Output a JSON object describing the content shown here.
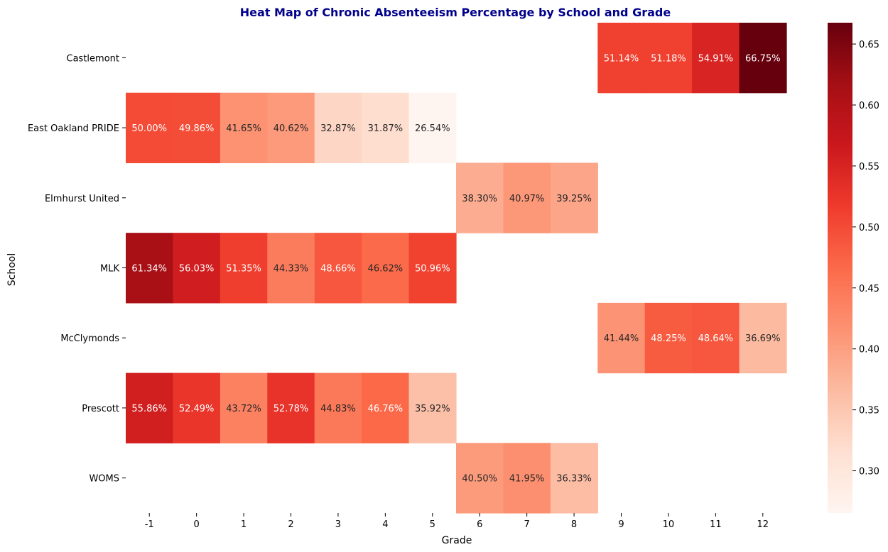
{
  "chart_data": {
    "type": "heatmap",
    "title": "Heat Map of Chronic Absenteeism Percentage by School and Grade",
    "xlabel": "Grade",
    "ylabel": "School",
    "x_categories": [
      "-1",
      "0",
      "1",
      "2",
      "3",
      "4",
      "5",
      "6",
      "7",
      "8",
      "9",
      "10",
      "11",
      "12"
    ],
    "y_categories": [
      "Castlemont",
      "East Oakland PRIDE",
      "Elmhurst United",
      "MLK",
      "McClymonds",
      "Prescott",
      "WOMS"
    ],
    "values": [
      [
        null,
        null,
        null,
        null,
        null,
        null,
        null,
        null,
        null,
        null,
        0.5114,
        0.5118,
        0.5491,
        0.6675
      ],
      [
        0.5,
        0.4986,
        0.4165,
        0.4062,
        0.3287,
        0.3187,
        0.2654,
        null,
        null,
        null,
        null,
        null,
        null,
        null
      ],
      [
        null,
        null,
        null,
        null,
        null,
        null,
        null,
        0.383,
        0.4097,
        0.3925,
        null,
        null,
        null,
        null
      ],
      [
        0.6134,
        0.5603,
        0.5135,
        0.4433,
        0.4866,
        0.4662,
        0.5096,
        null,
        null,
        null,
        null,
        null,
        null,
        null
      ],
      [
        null,
        null,
        null,
        null,
        null,
        null,
        null,
        null,
        null,
        null,
        0.4144,
        0.4825,
        0.4864,
        0.3669
      ],
      [
        0.5586,
        0.5249,
        0.4372,
        0.5278,
        0.4483,
        0.4676,
        0.3592,
        null,
        null,
        null,
        null,
        null,
        null,
        null
      ],
      [
        null,
        null,
        null,
        null,
        null,
        null,
        null,
        0.405,
        0.4195,
        0.3633,
        null,
        null,
        null,
        null
      ]
    ],
    "labels": [
      [
        "",
        "",
        "",
        "",
        "",
        "",
        "",
        "",
        "",
        "",
        "51.14%",
        "51.18%",
        "54.91%",
        "66.75%"
      ],
      [
        "50.00%",
        "49.86%",
        "41.65%",
        "40.62%",
        "32.87%",
        "31.87%",
        "26.54%",
        "",
        "",
        "",
        "",
        "",
        "",
        ""
      ],
      [
        "",
        "",
        "",
        "",
        "",
        "",
        "",
        "38.30%",
        "40.97%",
        "39.25%",
        "",
        "",
        "",
        ""
      ],
      [
        "61.34%",
        "56.03%",
        "51.35%",
        "44.33%",
        "48.66%",
        "46.62%",
        "50.96%",
        "",
        "",
        "",
        "",
        "",
        "",
        ""
      ],
      [
        "",
        "",
        "",
        "",
        "",
        "",
        "",
        "",
        "",
        "",
        "41.44%",
        "48.25%",
        "48.64%",
        "36.69%"
      ],
      [
        "55.86%",
        "52.49%",
        "43.72%",
        "52.78%",
        "44.83%",
        "46.76%",
        "35.92%",
        "",
        "",
        "",
        "",
        "",
        "",
        ""
      ],
      [
        "",
        "",
        "",
        "",
        "",
        "",
        "",
        "40.50%",
        "41.95%",
        "36.33%",
        "",
        "",
        "",
        ""
      ]
    ],
    "colorbar": {
      "min": 0.2654,
      "max": 0.6675,
      "ticks": [
        0.3,
        0.35,
        0.4,
        0.45,
        0.5,
        0.55,
        0.6,
        0.65
      ],
      "tick_labels": [
        "0.30",
        "0.35",
        "0.40",
        "0.45",
        "0.50",
        "0.55",
        "0.60",
        "0.65"
      ]
    },
    "colormap": "Reds",
    "colors": {
      "title": "#00008b",
      "text": "#000000"
    }
  }
}
